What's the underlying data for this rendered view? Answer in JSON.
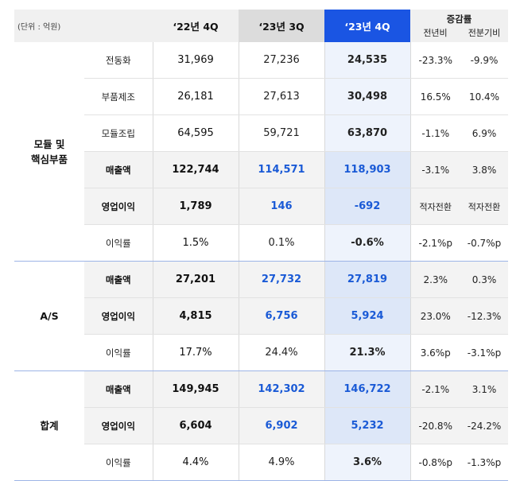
{
  "header": {
    "unit": "(단위 : 억원)",
    "col1": "‘22년 4Q",
    "col2": "‘23년 3Q",
    "col3": "‘23년 4Q",
    "change": "증감률",
    "yoy": "전년비",
    "qoq": "전분기비"
  },
  "sections": [
    {
      "group_line1": "모듈 및",
      "group_line2": "핵심부품",
      "rows": [
        {
          "item": "전동화",
          "v1": "31,969",
          "v2": "27,236",
          "v3": "24,535",
          "d1": "-23.3%",
          "d2": "-9.9%",
          "hl": false
        },
        {
          "item": "부품제조",
          "v1": "26,181",
          "v2": "27,613",
          "v3": "30,498",
          "d1": "16.5%",
          "d2": "10.4%",
          "hl": false
        },
        {
          "item": "모듈조립",
          "v1": "64,595",
          "v2": "59,721",
          "v3": "63,870",
          "d1": "-1.1%",
          "d2": "6.9%",
          "hl": false
        },
        {
          "item": "매출액",
          "v1": "122,744",
          "v2": "114,571",
          "v3": "118,903",
          "d1": "-3.1%",
          "d2": "3.8%",
          "hl": true
        },
        {
          "item": "영업이익",
          "v1": "1,789",
          "v2": "146",
          "v3": "-692",
          "d1": "적자전환",
          "d2": "적자전환",
          "hl": true,
          "txt": true
        },
        {
          "item": "이익률",
          "v1": "1.5%",
          "v2": "0.1%",
          "v3": "-0.6%",
          "d1": "-2.1%p",
          "d2": "-0.7%p",
          "hl": false
        }
      ]
    },
    {
      "group_line1": "A/S",
      "group_line2": "",
      "rows": [
        {
          "item": "매출액",
          "v1": "27,201",
          "v2": "27,732",
          "v3": "27,819",
          "d1": "2.3%",
          "d2": "0.3%",
          "hl": true
        },
        {
          "item": "영업이익",
          "v1": "4,815",
          "v2": "6,756",
          "v3": "5,924",
          "d1": "23.0%",
          "d2": "-12.3%",
          "hl": true
        },
        {
          "item": "이익률",
          "v1": "17.7%",
          "v2": "24.4%",
          "v3": "21.3%",
          "d1": "3.6%p",
          "d2": "-3.1%p",
          "hl": false
        }
      ]
    },
    {
      "group_line1": "합계",
      "group_line2": "",
      "rows": [
        {
          "item": "매출액",
          "v1": "149,945",
          "v2": "142,302",
          "v3": "146,722",
          "d1": "-2.1%",
          "d2": "3.1%",
          "hl": true
        },
        {
          "item": "영업이익",
          "v1": "6,604",
          "v2": "6,902",
          "v3": "5,232",
          "d1": "-20.8%",
          "d2": "-24.2%",
          "hl": true
        },
        {
          "item": "이익률",
          "v1": "4.4%",
          "v2": "4.9%",
          "v3": "3.6%",
          "d1": "-0.8%p",
          "d2": "-1.3%p",
          "hl": false
        }
      ]
    }
  ]
}
